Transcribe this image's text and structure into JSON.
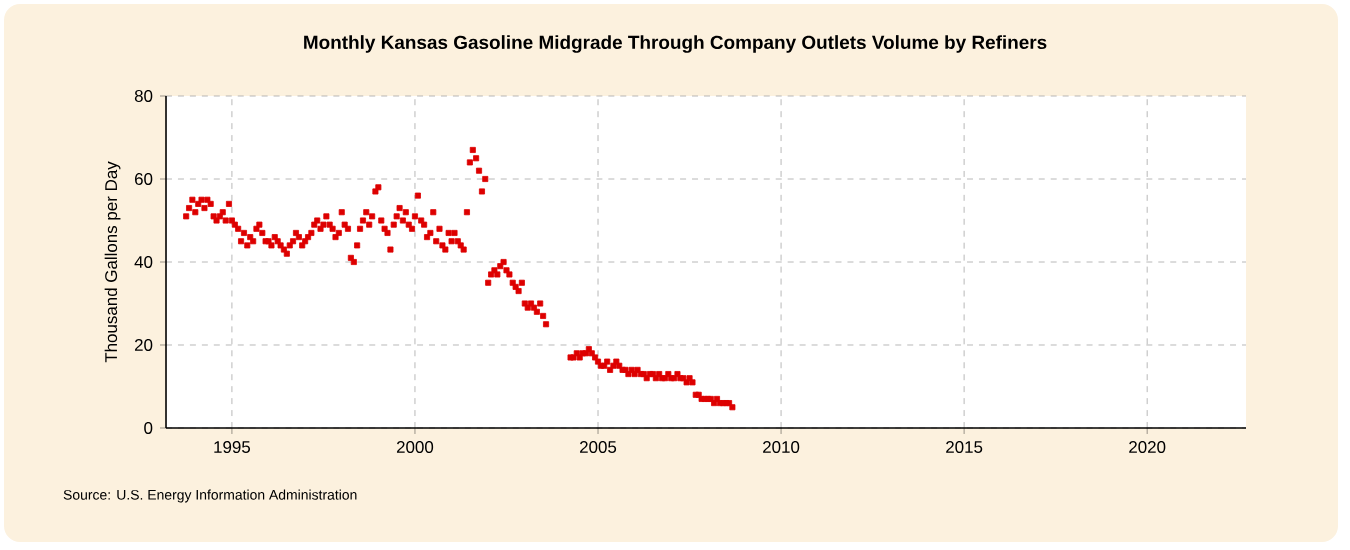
{
  "chart_data": {
    "type": "scatter",
    "title": "Monthly Kansas Gasoline Midgrade Through Company Outlets Volume by Refiners",
    "ylabel": "Thousand Gallons per Day",
    "annotations": [
      "Source: U.S. Energy Information Administration"
    ],
    "xlim": [
      1993.2,
      2022.7
    ],
    "ylim": [
      0,
      80
    ],
    "xticks": [
      1995,
      2000,
      2005,
      2010,
      2015,
      2020
    ],
    "yticks": [
      0,
      20,
      40,
      60,
      80
    ],
    "grid": true,
    "marker": "square",
    "series": [
      {
        "color": "#dd0000",
        "x": [
          1993.75,
          1993.83,
          1993.92,
          1994.0,
          1994.08,
          1994.17,
          1994.25,
          1994.33,
          1994.42,
          1994.5,
          1994.58,
          1994.67,
          1994.75,
          1994.83,
          1994.92,
          1995.0,
          1995.08,
          1995.17,
          1995.25,
          1995.33,
          1995.42,
          1995.5,
          1995.58,
          1995.67,
          1995.75,
          1995.83,
          1995.92,
          1996.0,
          1996.08,
          1996.17,
          1996.25,
          1996.33,
          1996.42,
          1996.5,
          1996.58,
          1996.67,
          1996.75,
          1996.83,
          1996.92,
          1997.0,
          1997.08,
          1997.17,
          1997.25,
          1997.33,
          1997.42,
          1997.5,
          1997.58,
          1997.67,
          1997.75,
          1997.83,
          1997.92,
          1998.0,
          1998.08,
          1998.17,
          1998.25,
          1998.33,
          1998.42,
          1998.5,
          1998.58,
          1998.67,
          1998.75,
          1998.83,
          1998.92,
          1999.0,
          1999.08,
          1999.17,
          1999.25,
          1999.33,
          1999.42,
          1999.5,
          1999.58,
          1999.67,
          1999.75,
          1999.83,
          1999.92,
          2000.0,
          2000.08,
          2000.17,
          2000.25,
          2000.33,
          2000.42,
          2000.5,
          2000.58,
          2000.67,
          2000.75,
          2000.83,
          2000.92,
          2001.0,
          2001.08,
          2001.17,
          2001.25,
          2001.33,
          2001.42,
          2001.5,
          2001.58,
          2001.67,
          2001.75,
          2001.83,
          2001.92,
          2002.0,
          2002.08,
          2002.17,
          2002.25,
          2002.33,
          2002.42,
          2002.5,
          2002.58,
          2002.67,
          2002.75,
          2002.83,
          2002.92,
          2003.0,
          2003.08,
          2003.17,
          2003.25,
          2003.33,
          2003.42,
          2003.5,
          2003.58,
          2004.25,
          2004.33,
          2004.42,
          2004.5,
          2004.58,
          2004.67,
          2004.75,
          2004.83,
          2004.92,
          2005.0,
          2005.08,
          2005.17,
          2005.25,
          2005.33,
          2005.42,
          2005.5,
          2005.58,
          2005.67,
          2005.75,
          2005.83,
          2005.92,
          2006.0,
          2006.08,
          2006.17,
          2006.25,
          2006.33,
          2006.42,
          2006.5,
          2006.58,
          2006.67,
          2006.75,
          2006.83,
          2006.92,
          2007.0,
          2007.08,
          2007.17,
          2007.25,
          2007.33,
          2007.42,
          2007.5,
          2007.58,
          2007.67,
          2007.75,
          2007.83,
          2007.92,
          2008.0,
          2008.08,
          2008.17,
          2008.25,
          2008.33,
          2008.42,
          2008.5,
          2008.58,
          2008.67
        ],
        "values": [
          51,
          53,
          55,
          52,
          54,
          55,
          53,
          55,
          54,
          51,
          50,
          51,
          52,
          50,
          54,
          50,
          49,
          48,
          45,
          47,
          44,
          46,
          45,
          48,
          49,
          47,
          45,
          45,
          44,
          46,
          45,
          44,
          43,
          42,
          44,
          45,
          47,
          46,
          44,
          45,
          46,
          47,
          49,
          50,
          48,
          49,
          51,
          49,
          48,
          46,
          47,
          52,
          49,
          48,
          41,
          40,
          44,
          48,
          50,
          52,
          49,
          51,
          57,
          58,
          50,
          48,
          47,
          43,
          49,
          51,
          53,
          50,
          52,
          49,
          48,
          51,
          56,
          50,
          49,
          46,
          47,
          52,
          45,
          48,
          44,
          43,
          47,
          45,
          47,
          45,
          44,
          43,
          52,
          64,
          67,
          65,
          62,
          57,
          60,
          35,
          37,
          38,
          37,
          39,
          40,
          38,
          37,
          35,
          34,
          33,
          35,
          30,
          29,
          30,
          29,
          28,
          30,
          27,
          25,
          17,
          17,
          18,
          17,
          18,
          18,
          19,
          18,
          17,
          16,
          15,
          15,
          16,
          14,
          15,
          16,
          15,
          14,
          14,
          13,
          14,
          13,
          14,
          13,
          13,
          12,
          13,
          13,
          12,
          13,
          12,
          12,
          13,
          12,
          12,
          13,
          12,
          12,
          11,
          12,
          11,
          8,
          8,
          7,
          7,
          7,
          7,
          6,
          7,
          6,
          6,
          6,
          6,
          5
        ]
      }
    ]
  }
}
